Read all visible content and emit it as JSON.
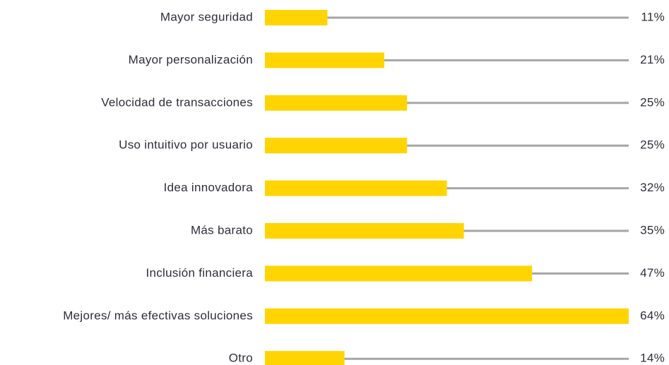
{
  "chart_data": {
    "type": "hbar",
    "categories": [
      "Mayor seguridad",
      "Mayor personalización",
      "Velocidad de transacciones",
      "Uso intuitivo por usuario",
      "Idea innovadora",
      "Más barato",
      "Inclusión financiera",
      "Mejores/ más efectivas soluciones",
      "Otro"
    ],
    "values": [
      11,
      21,
      25,
      25,
      32,
      35,
      47,
      64,
      14
    ],
    "value_labels": [
      "11%",
      "21%",
      "25%",
      "25%",
      "32%",
      "35%",
      "47%",
      "64%",
      "14%"
    ],
    "color": "#ffd400",
    "track_color": "#a6a6a6",
    "xlim": [
      0,
      64
    ]
  }
}
